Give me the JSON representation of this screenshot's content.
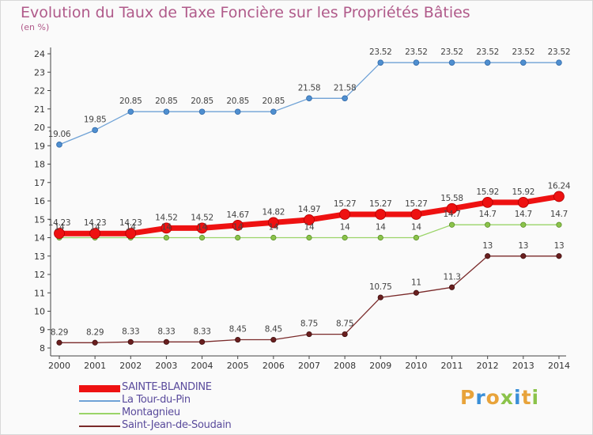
{
  "header": {
    "title": "Evolution du Taux de Taxe Foncière sur les Propriétés Bâties",
    "subtitle": "(en %)"
  },
  "logo": {
    "text": "Proxiti",
    "colors": [
      "#e8a33a",
      "#3a8fd8",
      "#e8a33a",
      "#8bc34a",
      "#3a8fd8",
      "#e8a33a",
      "#8bc34a"
    ]
  },
  "chart_data": {
    "type": "line",
    "title": "Evolution du Taux de Taxe Foncière sur les Propriétés Bâties",
    "ylabel": "(en %)",
    "xlabel": "",
    "x": [
      "2000",
      "2001",
      "2002",
      "2003",
      "2004",
      "2005",
      "2006",
      "2007",
      "2008",
      "2009",
      "2010",
      "2011",
      "2012",
      "2013",
      "2014"
    ],
    "ylim": [
      8,
      24
    ],
    "yticks": [
      8,
      9,
      10,
      11,
      12,
      13,
      14,
      15,
      16,
      17,
      18,
      19,
      20,
      21,
      22,
      23,
      24
    ],
    "grid": false,
    "legend_position": "bottom-left",
    "series": [
      {
        "name": "Saint-Jean-de-Soudain",
        "color": "#7a2a2a",
        "values": [
          8.29,
          8.29,
          8.33,
          8.33,
          8.33,
          8.45,
          8.45,
          8.75,
          8.75,
          10.75,
          11,
          11.3,
          13,
          13,
          13
        ],
        "labels": [
          "8.29",
          "8.29",
          "8.33",
          "8.33",
          "8.33",
          "8.45",
          "8.45",
          "8.75",
          "8.75",
          "10.75",
          "11",
          "11.3",
          "13",
          "13",
          "13"
        ]
      },
      {
        "name": "Montagnieu",
        "color": "#9ad468",
        "values": [
          14,
          14,
          14,
          14,
          14,
          14,
          14,
          14,
          14,
          14,
          14,
          14.7,
          14.7,
          14.7,
          14.7
        ],
        "labels": [
          "14",
          "14",
          "14",
          "14",
          "14",
          "14",
          "14",
          "14",
          "14",
          "14",
          "14",
          "14.7",
          "14.7",
          "14.7",
          "14.7"
        ]
      },
      {
        "name": "La Tour-du-Pin",
        "color": "#6fa2d6",
        "values": [
          19.06,
          19.85,
          20.85,
          20.85,
          20.85,
          20.85,
          20.85,
          21.58,
          21.58,
          23.52,
          23.52,
          23.52,
          23.52,
          23.52,
          23.52
        ],
        "labels": [
          "19.06",
          "19.85",
          "20.85",
          "20.85",
          "20.85",
          "20.85",
          "20.85",
          "21.58",
          "21.58",
          "23.52",
          "23.52",
          "23.52",
          "23.52",
          "23.52",
          "23.52"
        ]
      },
      {
        "name": "SAINTE-BLANDINE",
        "color": "#ee1111",
        "values": [
          14.23,
          14.23,
          14.23,
          14.52,
          14.52,
          14.67,
          14.82,
          14.97,
          15.27,
          15.27,
          15.27,
          15.58,
          15.92,
          15.92,
          16.24
        ],
        "labels": [
          "14.23",
          "14.23",
          "14.23",
          "14.52",
          "14.52",
          "14.67",
          "14.82",
          "14.97",
          "15.27",
          "15.27",
          "15.27",
          "15.58",
          "15.92",
          "15.92",
          "16.24"
        ]
      }
    ]
  }
}
